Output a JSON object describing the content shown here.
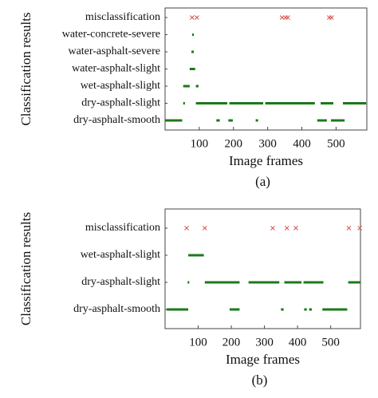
{
  "chart_data": [
    {
      "type": "timeline",
      "xlabel": "Image frames",
      "ylabel": "Classification results",
      "caption": "(a)",
      "xlim": [
        0,
        590
      ],
      "xticks": [
        100,
        200,
        300,
        400,
        500
      ],
      "color": "#1a7a1a",
      "cross_color": "#d9534f",
      "rows": [
        {
          "label": "misclassification",
          "marker": "x",
          "x": [
            79,
            93,
            342,
            352,
            359,
            480,
            487
          ]
        },
        {
          "label": "water-concrete-severe",
          "segments": [
            [
              79,
              84
            ]
          ]
        },
        {
          "label": "water-asphalt-severe",
          "segments": [
            [
              77,
              84
            ]
          ]
        },
        {
          "label": "water-asphalt-slight",
          "segments": [
            [
              72,
              88
            ]
          ]
        },
        {
          "label": "wet-asphalt-slight",
          "segments": [
            [
              53,
              72
            ],
            [
              90,
              98
            ]
          ]
        },
        {
          "label": "dry-asphalt-slight",
          "segments": [
            [
              53,
              58
            ],
            [
              90,
              182
            ],
            [
              188,
              287
            ],
            [
              293,
              438
            ],
            [
              455,
              492
            ],
            [
              520,
              588
            ]
          ]
        },
        {
          "label": "dry-asphalt-smooth",
          "segments": [
            [
              0,
              50
            ],
            [
              150,
              160
            ],
            [
              185,
              198
            ],
            [
              265,
              272
            ],
            [
              445,
              473
            ],
            [
              485,
              525
            ]
          ]
        }
      ]
    },
    {
      "type": "timeline",
      "xlabel": "Image frames",
      "ylabel": "Classification results",
      "caption": "(b)",
      "xlim": [
        0,
        590
      ],
      "xticks": [
        100,
        200,
        300,
        400,
        500
      ],
      "color": "#1a7a1a",
      "cross_color": "#d9534f",
      "rows": [
        {
          "label": "misclassification",
          "marker": "x",
          "x": [
            65,
            120,
            325,
            368,
            395,
            555,
            588
          ]
        },
        {
          "label": "wet-asphalt-slight",
          "segments": [
            [
              70,
              117
            ]
          ]
        },
        {
          "label": "dry-asphalt-slight",
          "segments": [
            [
              68,
              73
            ],
            [
              120,
              225
            ],
            [
              252,
              345
            ],
            [
              360,
              412
            ],
            [
              418,
              478
            ],
            [
              553,
              590
            ]
          ]
        },
        {
          "label": "dry-asphalt-smooth",
          "segments": [
            [
              5,
              70
            ],
            [
              195,
              225
            ],
            [
              350,
              358
            ],
            [
              420,
              428
            ],
            [
              435,
              443
            ],
            [
              475,
              550
            ]
          ]
        }
      ]
    }
  ]
}
